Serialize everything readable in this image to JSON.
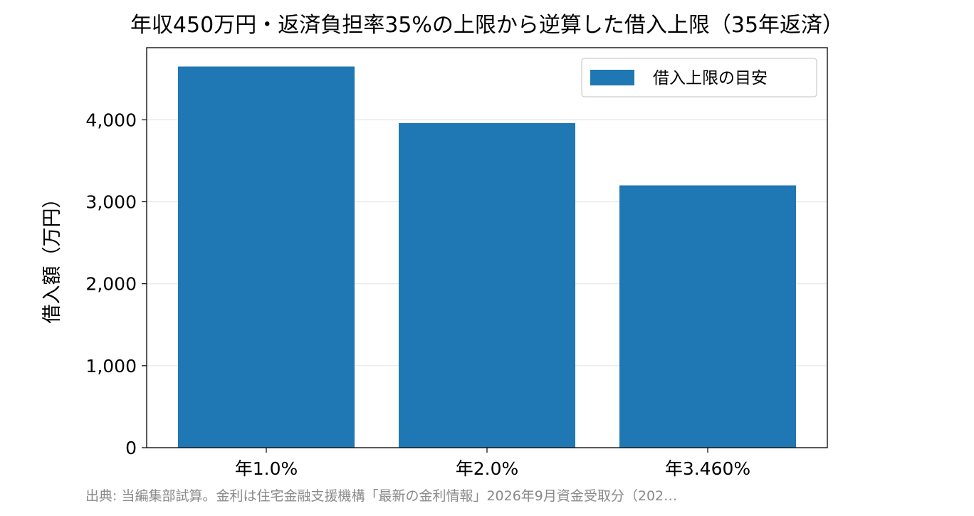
{
  "chart_data": {
    "type": "bar",
    "title": "年収450万円・返済負担率35%の上限から逆算した借入上限（35年返済）",
    "xlabel": "",
    "ylabel": "借入額（万円）",
    "categories": [
      "年1.0%",
      "年2.0%",
      "年3.460%"
    ],
    "series": [
      {
        "name": "借入上限の目安",
        "values": [
          4650,
          3960,
          3200
        ],
        "color": "#1f77b4"
      }
    ],
    "ylim": [
      0,
      4880
    ],
    "yticks": [
      0,
      1000,
      2000,
      3000,
      4000
    ],
    "ytick_labels": [
      "0",
      "1,000",
      "2,000",
      "3,000",
      "4,000"
    ],
    "grid": "y",
    "legend_position": "top-right"
  },
  "source_note": "出典: 当編集部試算。金利は住宅金融支援機構「最新の金利情報」2026年9月資金受取分（202…"
}
